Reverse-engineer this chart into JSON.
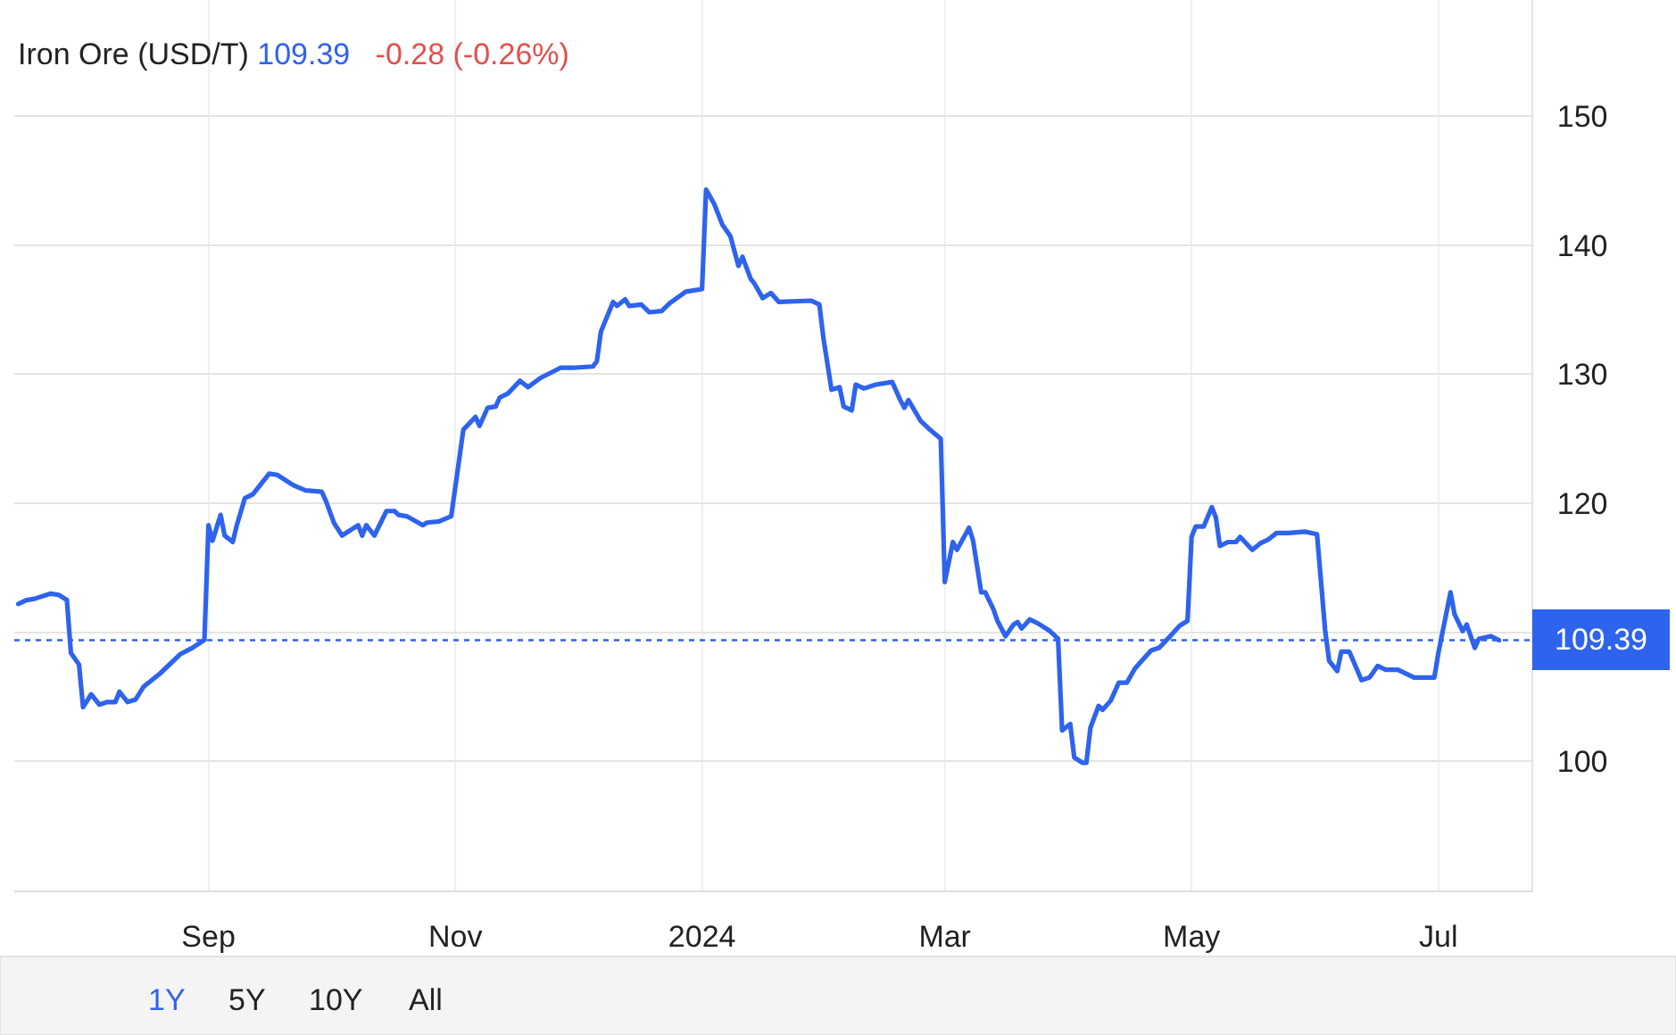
{
  "chart_data": {
    "type": "line",
    "title": "Iron Ore (USD/T)",
    "annotations": [
      "109.39",
      "-0.28 (-0.26%)",
      "1Y",
      "5Y",
      "10Y",
      "All"
    ],
    "x": [
      "2023-07-16",
      "2023-07-18",
      "2023-07-20",
      "2023-07-24",
      "2023-07-26",
      "2023-07-28",
      "2023-07-29",
      "2023-07-31",
      "2023-08-01",
      "2023-08-03",
      "2023-08-05",
      "2023-08-07",
      "2023-08-09",
      "2023-08-10",
      "2023-08-12",
      "2023-08-14",
      "2023-08-16",
      "2023-08-20",
      "2023-08-23",
      "2023-08-25",
      "2023-08-28",
      "2023-08-31",
      "2023-09-01",
      "2023-09-02",
      "2023-09-04",
      "2023-09-05",
      "2023-09-07",
      "2023-09-08",
      "2023-09-10",
      "2023-09-12",
      "2023-09-16",
      "2023-09-18",
      "2023-09-22",
      "2023-09-25",
      "2023-09-29",
      "2023-09-30",
      "2023-10-02",
      "2023-10-04",
      "2023-10-08",
      "2023-10-09",
      "2023-10-10",
      "2023-10-12",
      "2023-10-15",
      "2023-10-17",
      "2023-10-18",
      "2023-10-20",
      "2023-10-24",
      "2023-10-25",
      "2023-10-28",
      "2023-10-31",
      "2023-11-03",
      "2023-11-06",
      "2023-11-07",
      "2023-11-09",
      "2023-11-11",
      "2023-11-12",
      "2023-11-14",
      "2023-11-17",
      "2023-11-19",
      "2023-11-22",
      "2023-11-27",
      "2023-11-30",
      "2023-12-05",
      "2023-12-06",
      "2023-12-07",
      "2023-12-10",
      "2023-12-11",
      "2023-12-13",
      "2023-12-14",
      "2023-12-17",
      "2023-12-19",
      "2023-12-22",
      "2023-12-24",
      "2023-12-28",
      "2024-01-01",
      "2024-01-02",
      "2024-01-04",
      "2024-01-06",
      "2024-01-08",
      "2024-01-10",
      "2024-01-11",
      "2024-01-13",
      "2024-01-14",
      "2024-01-16",
      "2024-01-18",
      "2024-01-20",
      "2024-01-28",
      "2024-01-30",
      "2024-01-31",
      "2024-02-02",
      "2024-02-04",
      "2024-02-05",
      "2024-02-07",
      "2024-02-08",
      "2024-02-10",
      "2024-02-13",
      "2024-02-17",
      "2024-02-19",
      "2024-02-20",
      "2024-02-21",
      "2024-02-24",
      "2024-02-26",
      "2024-02-29",
      "2024-03-01",
      "2024-03-03",
      "2024-03-04",
      "2024-03-07",
      "2024-03-08",
      "2024-03-10",
      "2024-03-11",
      "2024-03-13",
      "2024-03-14",
      "2024-03-16",
      "2024-03-18",
      "2024-03-19",
      "2024-03-20",
      "2024-03-22",
      "2024-03-24",
      "2024-03-27",
      "2024-03-29",
      "2024-03-30",
      "2024-04-01",
      "2024-04-02",
      "2024-04-04",
      "2024-04-05",
      "2024-04-06",
      "2024-04-08",
      "2024-04-09",
      "2024-04-11",
      "2024-04-13",
      "2024-04-15",
      "2024-04-17",
      "2024-04-19",
      "2024-04-21",
      "2024-04-23",
      "2024-04-26",
      "2024-04-28",
      "2024-04-30",
      "2024-05-01",
      "2024-05-02",
      "2024-05-04",
      "2024-05-06",
      "2024-05-07",
      "2024-05-08",
      "2024-05-10",
      "2024-05-12",
      "2024-05-13",
      "2024-05-16",
      "2024-05-18",
      "2024-05-20",
      "2024-05-22",
      "2024-05-25",
      "2024-05-29",
      "2024-06-01",
      "2024-06-03",
      "2024-06-04",
      "2024-06-06",
      "2024-06-07",
      "2024-06-09",
      "2024-06-12",
      "2024-06-14",
      "2024-06-16",
      "2024-06-18",
      "2024-06-21",
      "2024-06-25",
      "2024-06-30",
      "2024-07-01",
      "2024-07-04",
      "2024-07-05",
      "2024-07-07",
      "2024-07-08",
      "2024-07-10",
      "2024-07-11",
      "2024-07-14",
      "2024-07-16"
    ],
    "series": [
      {
        "color": "#2e63ee",
        "values": [
          112.2,
          112.5,
          112.6,
          113.0,
          112.9,
          112.5,
          108.4,
          107.5,
          104.2,
          105.2,
          104.4,
          104.6,
          104.6,
          105.4,
          104.6,
          104.8,
          105.8,
          106.8,
          107.7,
          108.3,
          108.8,
          109.4,
          118.3,
          117.1,
          119.1,
          117.5,
          117.0,
          118.3,
          120.4,
          120.7,
          122.3,
          122.2,
          121.4,
          121.0,
          120.9,
          120.2,
          118.5,
          117.5,
          118.3,
          117.5,
          118.3,
          117.5,
          119.4,
          119.4,
          119.1,
          119.0,
          118.3,
          118.5,
          118.6,
          119.0,
          125.7,
          126.7,
          126.0,
          127.4,
          127.5,
          128.2,
          128.5,
          129.5,
          129.0,
          129.7,
          130.5,
          130.5,
          130.6,
          131.0,
          133.3,
          135.6,
          135.3,
          135.8,
          135.3,
          135.4,
          134.8,
          134.9,
          135.5,
          136.4,
          136.6,
          144.3,
          143.2,
          141.6,
          140.7,
          138.4,
          139.1,
          137.4,
          137.0,
          135.9,
          136.3,
          135.6,
          135.7,
          135.4,
          132.8,
          128.8,
          129.0,
          127.5,
          127.2,
          129.2,
          128.9,
          129.2,
          129.4,
          128.0,
          127.4,
          128.0,
          126.4,
          125.8,
          125.0,
          113.9,
          117.0,
          116.4,
          118.1,
          117.1,
          113.1,
          113.1,
          111.8,
          110.9,
          109.7,
          110.6,
          110.8,
          110.3,
          111.0,
          110.7,
          110.1,
          109.5,
          102.4,
          102.9,
          100.3,
          99.9,
          99.9,
          102.6,
          104.3,
          104.0,
          104.7,
          106.1,
          106.1,
          107.2,
          107.9,
          108.6,
          108.8,
          109.8,
          110.5,
          110.9,
          117.4,
          118.2,
          118.2,
          119.7,
          118.9,
          116.7,
          117.0,
          117.0,
          117.4,
          116.4,
          116.9,
          117.2,
          117.7,
          117.7,
          117.8,
          117.6,
          110.2,
          107.8,
          107.0,
          108.5,
          108.5,
          106.3,
          106.5,
          107.4,
          107.1,
          107.1,
          106.5,
          106.5,
          108.4,
          113.1,
          111.4,
          110.1,
          110.6,
          108.8,
          109.5,
          109.7,
          109.39
        ]
      }
    ],
    "xlim": [
      "2023-07-15",
      "2024-07-24"
    ],
    "xticks": [
      {
        "value": "2023-09-01",
        "label": "Sep"
      },
      {
        "value": "2023-11-01",
        "label": "Nov"
      },
      {
        "value": "2024-01-01",
        "label": "2024"
      },
      {
        "value": "2024-03-01",
        "label": "Mar"
      },
      {
        "value": "2024-05-01",
        "label": "May"
      },
      {
        "value": "2024-07-01",
        "label": "Jul"
      }
    ],
    "ylim": [
      90,
      159
    ],
    "yticks": [
      100,
      {
        "value": 110,
        "label": null
      },
      120,
      130,
      140,
      150
    ],
    "ref_lines": [
      {
        "axis": "y",
        "value": 109.39,
        "label": "109.39",
        "color": "#2e63ee",
        "line_style": "dotted"
      }
    ],
    "grid": true,
    "marker": "none",
    "line_style": "solid"
  }
}
